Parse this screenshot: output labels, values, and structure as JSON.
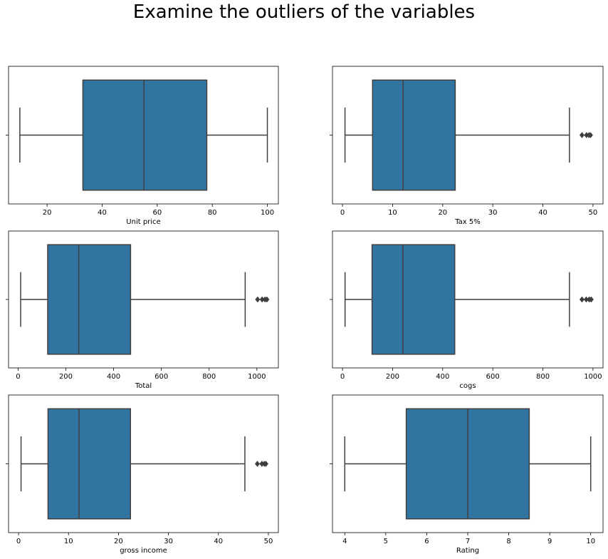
{
  "figure": {
    "title": "Examine the outliers of the variables"
  },
  "colors": {
    "box": "#3274a1",
    "line": "#3f3f3f",
    "frame": "#000000"
  },
  "chart_data": [
    {
      "type": "box",
      "xlabel": "Unit price",
      "xlim": [
        6,
        104
      ],
      "xticks": [
        20,
        40,
        60,
        80,
        100
      ],
      "stats": {
        "whisker_low": 10.1,
        "q1": 33,
        "median": 55.2,
        "q3": 78,
        "whisker_high": 100
      },
      "outliers": []
    },
    {
      "type": "box",
      "xlabel": "Tax 5%",
      "xlim": [
        -2,
        52
      ],
      "xticks": [
        0,
        10,
        20,
        30,
        40,
        50
      ],
      "stats": {
        "whisker_low": 0.5,
        "q1": 6,
        "median": 12.1,
        "q3": 22.5,
        "whisker_high": 45.3
      },
      "outliers": [
        47.8,
        48.7,
        49.2,
        49.5
      ]
    },
    {
      "type": "box",
      "xlabel": "Total",
      "xlim": [
        -40,
        1090
      ],
      "xticks": [
        0,
        200,
        400,
        600,
        800,
        1000
      ],
      "stats": {
        "whisker_low": 10.7,
        "q1": 124,
        "median": 254,
        "q3": 471,
        "whisker_high": 951
      },
      "outliers": [
        1003,
        1022,
        1034,
        1042
      ]
    },
    {
      "type": "box",
      "xlabel": "cogs",
      "xlim": [
        -40,
        1040
      ],
      "xticks": [
        0,
        200,
        400,
        600,
        800,
        1000
      ],
      "stats": {
        "whisker_low": 10.2,
        "q1": 118,
        "median": 241,
        "q3": 448,
        "whisker_high": 906
      },
      "outliers": [
        956,
        973,
        985,
        993
      ]
    },
    {
      "type": "box",
      "xlabel": "gross income",
      "xlim": [
        -2,
        52
      ],
      "xticks": [
        0,
        10,
        20,
        30,
        40,
        50
      ],
      "stats": {
        "whisker_low": 0.5,
        "q1": 5.9,
        "median": 12.1,
        "q3": 22.4,
        "whisker_high": 45.3
      },
      "outliers": [
        47.8,
        48.7,
        49.2,
        49.5
      ]
    },
    {
      "type": "box",
      "xlabel": "Rating",
      "xlim": [
        3.7,
        10.3
      ],
      "xticks": [
        4,
        5,
        6,
        7,
        8,
        9,
        10
      ],
      "stats": {
        "whisker_low": 4,
        "q1": 5.5,
        "median": 7,
        "q3": 8.5,
        "whisker_high": 10
      },
      "outliers": []
    }
  ]
}
